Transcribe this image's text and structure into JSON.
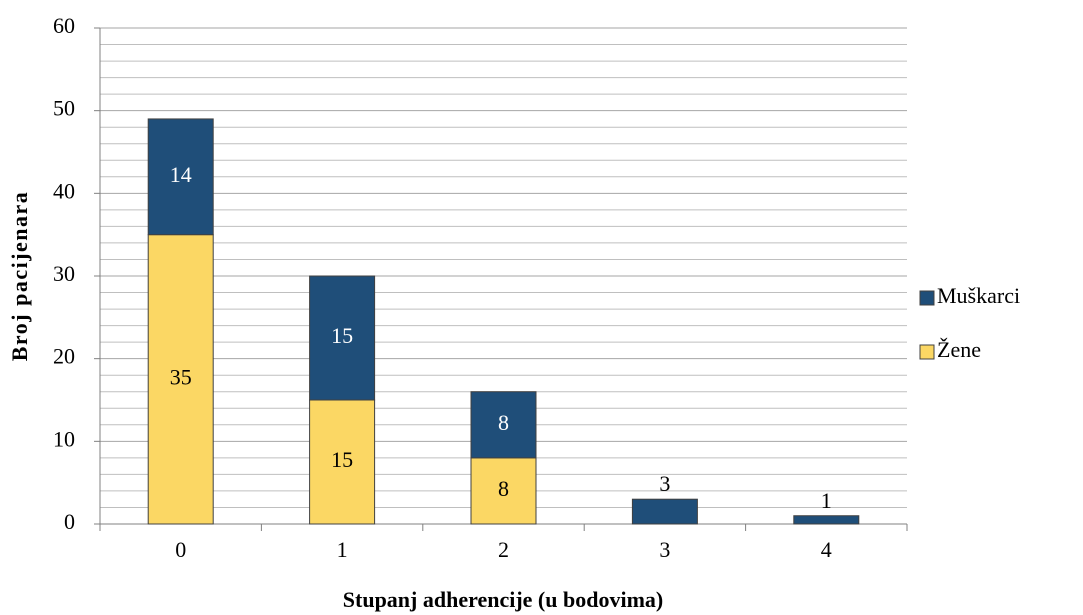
{
  "chart_data": {
    "type": "stacked_bar",
    "x_label": "Stupanj adherencije (u bodovima)",
    "y_label": "Broj pacijenara",
    "categories": [
      "0",
      "1",
      "2",
      "3",
      "4"
    ],
    "series": [
      {
        "name": "Žene",
        "color": "#fbd764",
        "values": [
          35,
          15,
          8,
          0,
          0
        ]
      },
      {
        "name": "Muškarci",
        "color": "#1f4e79",
        "values": [
          14,
          15,
          8,
          3,
          1
        ]
      }
    ],
    "ylim": [
      0,
      60
    ],
    "yticks": [
      0,
      10,
      20,
      30,
      40,
      50,
      60
    ],
    "minor_yticks": [
      2,
      4,
      6,
      8,
      12,
      14,
      16,
      18,
      22,
      24,
      26,
      28,
      32,
      34,
      36,
      38,
      42,
      44,
      46,
      48,
      52,
      54,
      56,
      58
    ],
    "grid": true,
    "legend": "right"
  }
}
